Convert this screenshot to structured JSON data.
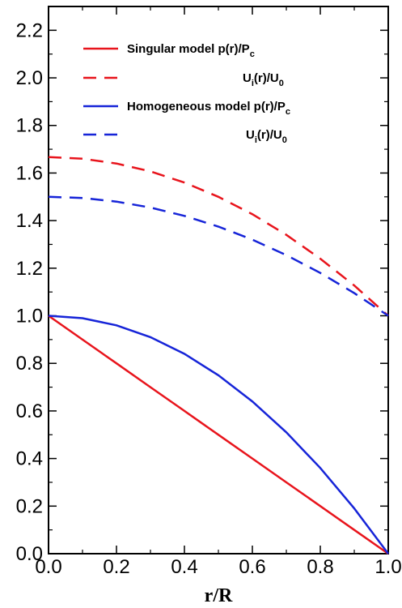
{
  "chart_data": {
    "type": "line",
    "title": "",
    "xlabel": "r/R",
    "ylabel": "",
    "xlim": [
      0.0,
      1.0
    ],
    "ylim": [
      0.0,
      2.3
    ],
    "xticks": [
      "0.0",
      "0.2",
      "0.4",
      "0.6",
      "0.8",
      "1.0"
    ],
    "yticks": [
      "0.0",
      "0.2",
      "0.4",
      "0.6",
      "0.8",
      "1.0",
      "1.2",
      "1.4",
      "1.6",
      "1.8",
      "2.0",
      "2.2"
    ],
    "grid": false,
    "legend_position": "top",
    "legend": [
      {
        "main": "Singular model p(r)/P",
        "sub": "c",
        "tail": "",
        "color": "#e8141c",
        "dash": "solid"
      },
      {
        "main": "U",
        "sub": "i",
        "tail": "(r)/U",
        "sub2": "0",
        "color": "#e8141c",
        "dash": "dashed"
      },
      {
        "main": "Homogeneous model p(r)/P",
        "sub": "c",
        "tail": "",
        "color": "#1624d8",
        "dash": "solid"
      },
      {
        "main": "U",
        "sub": "i",
        "tail": "(r)/U",
        "sub2": "0",
        "color": "#1624d8",
        "dash": "dashed"
      }
    ],
    "x": [
      0.0,
      0.1,
      0.2,
      0.3,
      0.4,
      0.5,
      0.6,
      0.7,
      0.8,
      0.9,
      1.0
    ],
    "series": [
      {
        "values": [
          1.0,
          0.9,
          0.8,
          0.7,
          0.6,
          0.5,
          0.4,
          0.3,
          0.2,
          0.1,
          0.0
        ],
        "color": "#e8141c",
        "dash": "solid"
      },
      {
        "values": [
          1.667,
          1.66,
          1.64,
          1.607,
          1.56,
          1.5,
          1.427,
          1.34,
          1.24,
          1.127,
          1.0
        ],
        "color": "#e8141c",
        "dash": "dashed"
      },
      {
        "values": [
          1.0,
          0.99,
          0.96,
          0.91,
          0.84,
          0.75,
          0.64,
          0.51,
          0.36,
          0.19,
          0.0
        ],
        "color": "#1624d8",
        "dash": "solid"
      },
      {
        "values": [
          1.5,
          1.495,
          1.48,
          1.455,
          1.42,
          1.375,
          1.32,
          1.255,
          1.18,
          1.095,
          1.0
        ],
        "color": "#1624d8",
        "dash": "dashed"
      }
    ]
  }
}
